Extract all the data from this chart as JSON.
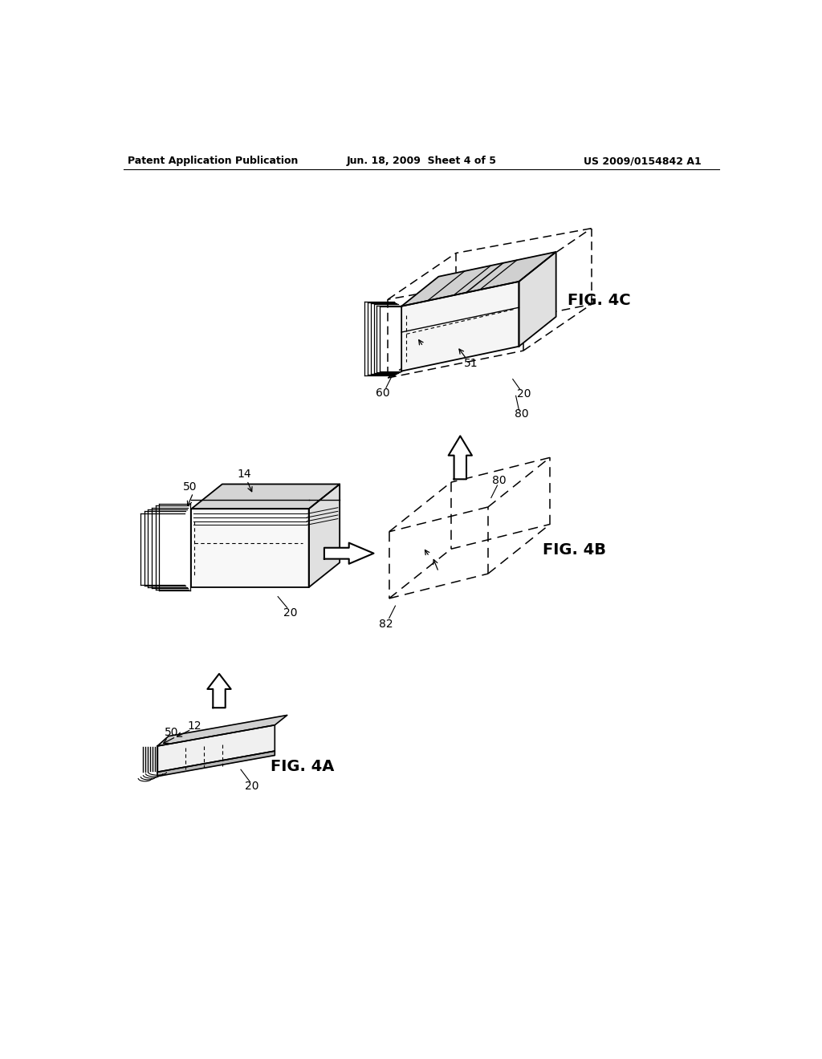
{
  "title_left": "Patent Application Publication",
  "title_center": "Jun. 18, 2009  Sheet 4 of 5",
  "title_right": "US 2009/0154842 A1",
  "bg_color": "#ffffff",
  "line_color": "#000000"
}
